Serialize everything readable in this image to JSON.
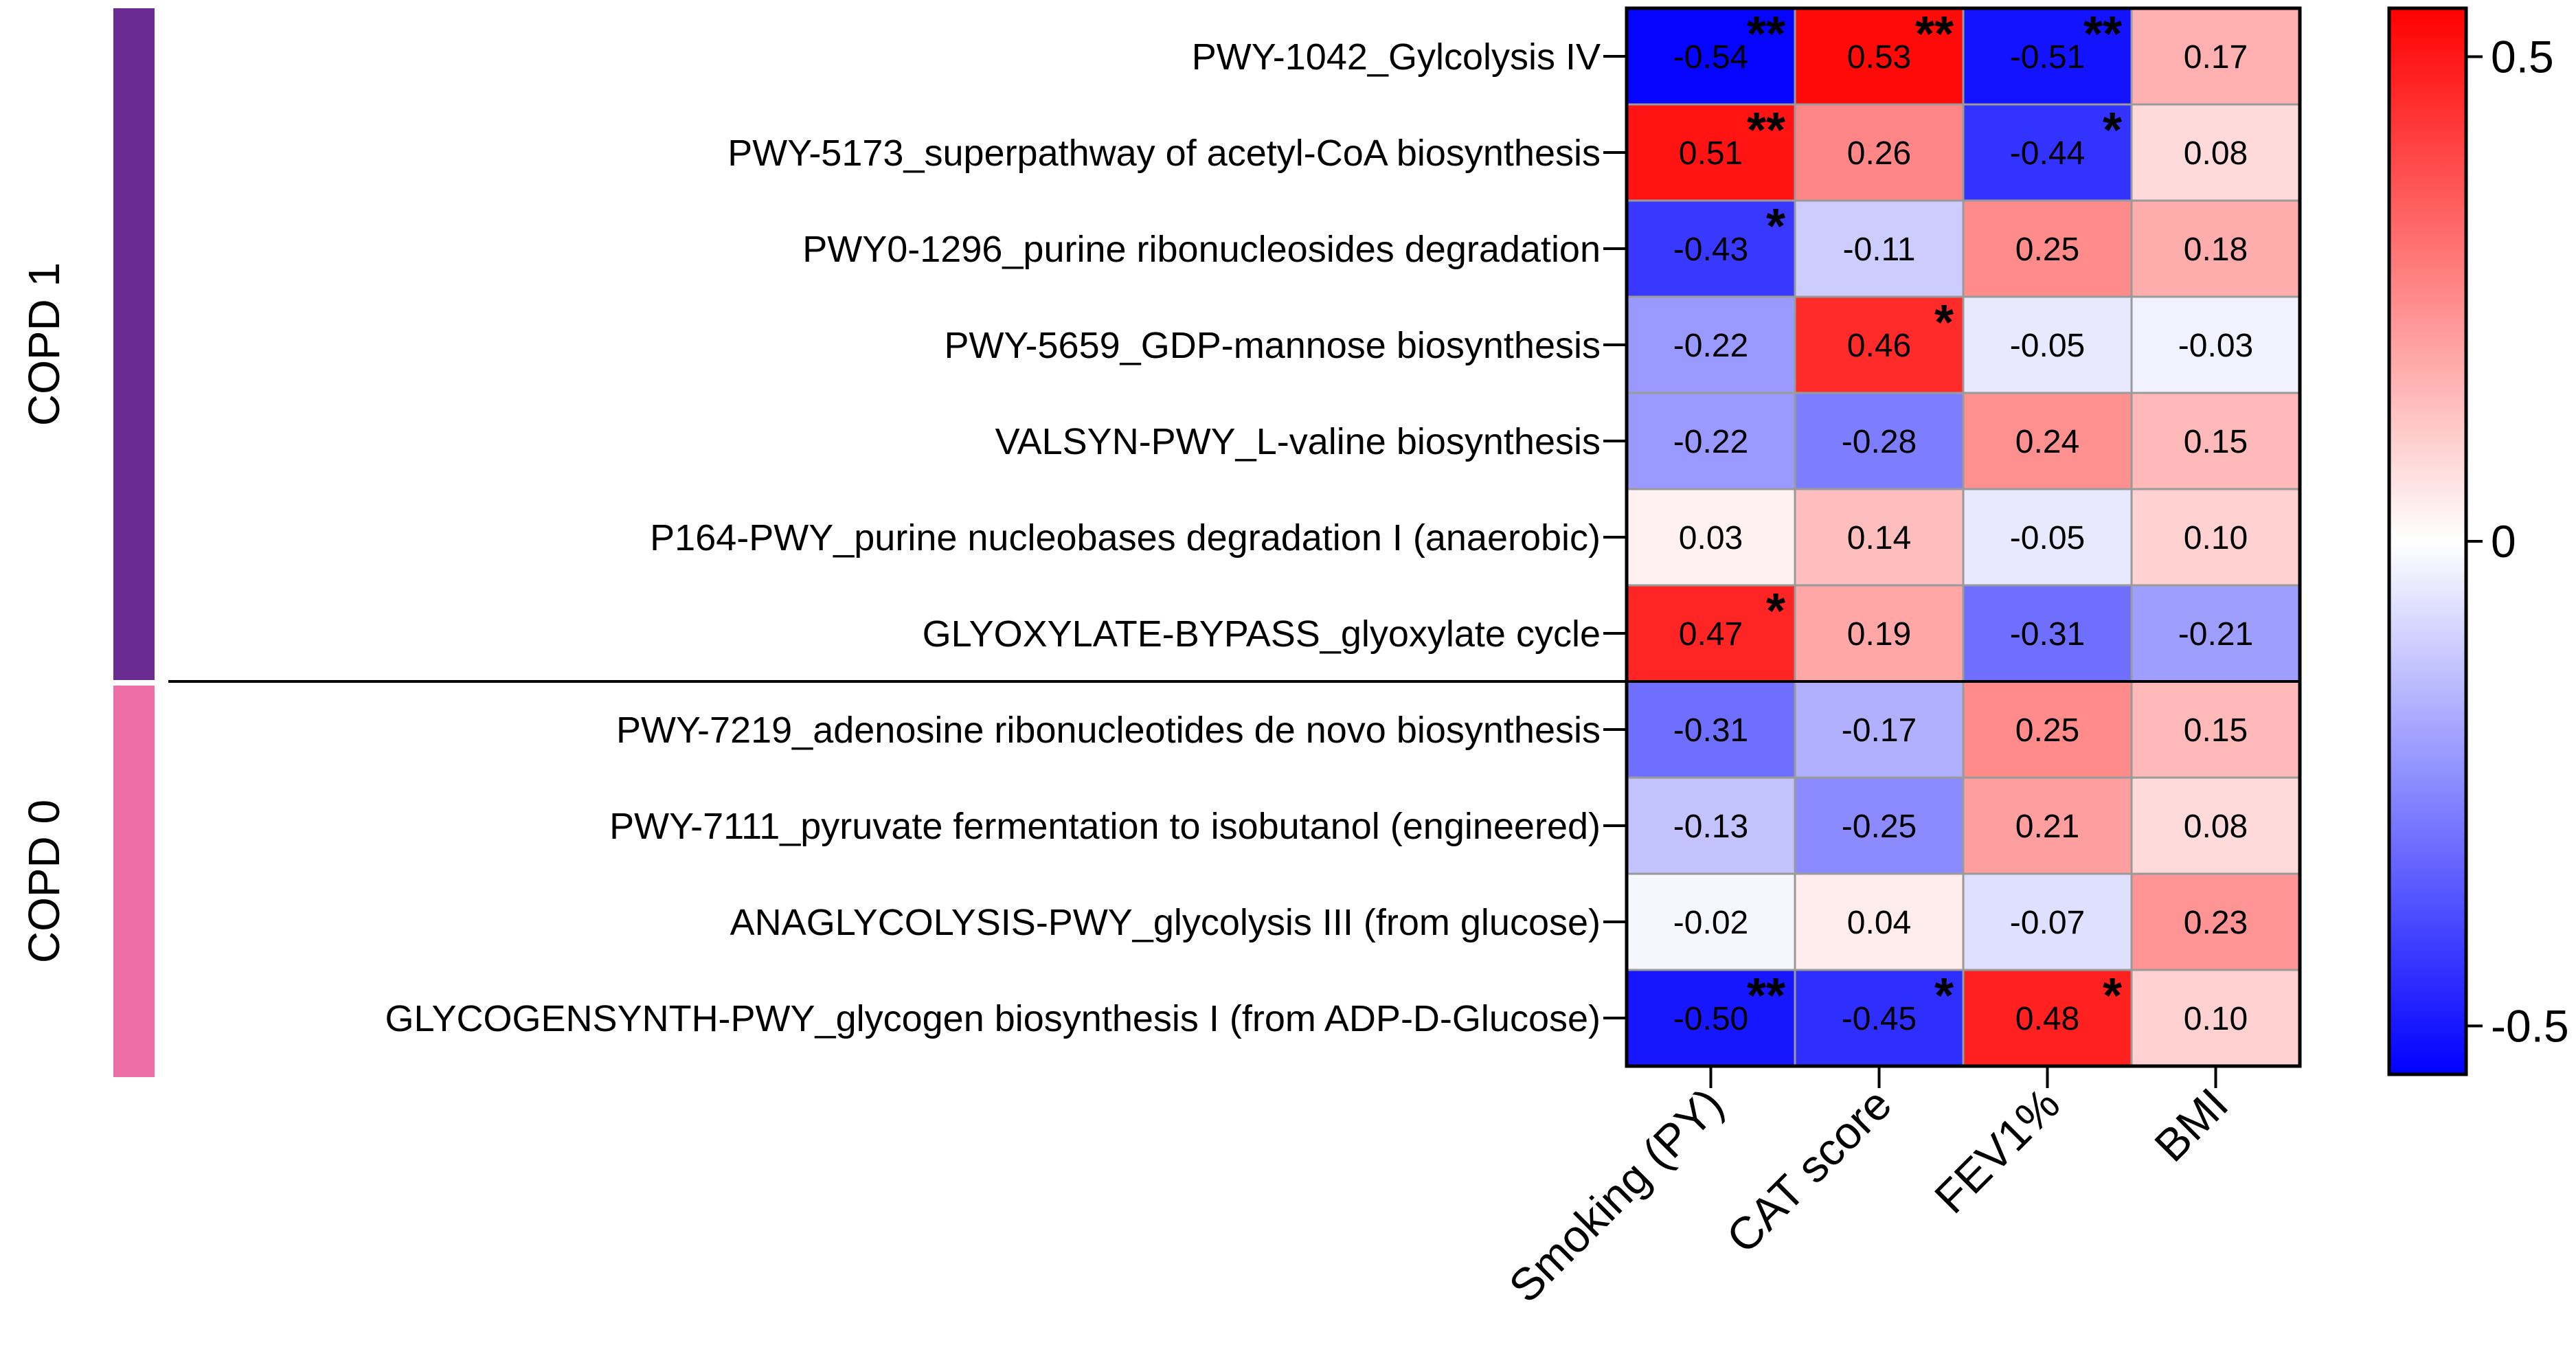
{
  "chart_data": {
    "type": "heatmap",
    "title": "",
    "columns": [
      "Smoking (PY)",
      "CAT score",
      "FEV1%",
      "BMI"
    ],
    "rows": [
      "PWY-1042_Gylcolysis IV",
      "PWY-5173_superpathway of acetyl-CoA biosynthesis",
      "PWY0-1296_purine ribonucleosides degradation",
      "PWY-5659_GDP-mannose biosynthesis",
      "VALSYN-PWY_L-valine biosynthesis",
      "P164-PWY_purine nucleobases degradation I (anaerobic)",
      "GLYOXYLATE-BYPASS_glyoxylate cycle",
      "PWY-7219_adenosine ribonucleotides de novo biosynthesis",
      "PWY-7111_pyruvate fermentation to isobutanol (engineered)",
      "ANAGLYCOLYSIS-PWY_glycolysis III (from glucose)",
      "GLYCOGENSYNTH-PWY_glycogen biosynthesis I (from ADP-D-Glucose)"
    ],
    "values": [
      [
        -0.54,
        0.53,
        -0.51,
        0.17
      ],
      [
        0.51,
        0.26,
        -0.44,
        0.08
      ],
      [
        -0.43,
        -0.11,
        0.25,
        0.18
      ],
      [
        -0.22,
        0.46,
        -0.05,
        -0.03
      ],
      [
        -0.22,
        -0.28,
        0.24,
        0.15
      ],
      [
        0.03,
        0.14,
        -0.05,
        0.1
      ],
      [
        0.47,
        0.19,
        -0.31,
        -0.21
      ],
      [
        -0.31,
        -0.17,
        0.25,
        0.15
      ],
      [
        -0.13,
        -0.25,
        0.21,
        0.08
      ],
      [
        -0.02,
        0.04,
        -0.07,
        0.23
      ],
      [
        -0.5,
        -0.45,
        0.48,
        0.1
      ]
    ],
    "value_labels": [
      [
        "-0.54",
        "0.53",
        "-0.51",
        "0.17"
      ],
      [
        "0.51",
        "0.26",
        "-0.44",
        "0.08"
      ],
      [
        "-0.43",
        "-0.11",
        "0.25",
        "0.18"
      ],
      [
        "-0.22",
        "0.46",
        "-0.05",
        "-0.03"
      ],
      [
        "-0.22",
        "-0.28",
        "0.24",
        "0.15"
      ],
      [
        "0.03",
        "0.14",
        "-0.05",
        "0.10"
      ],
      [
        "0.47",
        "0.19",
        "-0.31",
        "-0.21"
      ],
      [
        "-0.31",
        "-0.17",
        "0.25",
        "0.15"
      ],
      [
        "-0.13",
        "-0.25",
        "0.21",
        "0.08"
      ],
      [
        "-0.02",
        "0.04",
        "-0.07",
        "0.23"
      ],
      [
        "-0.50",
        "-0.45",
        "0.48",
        "0.10"
      ]
    ],
    "significance": [
      [
        "**",
        "**",
        "**",
        ""
      ],
      [
        "**",
        "",
        "*",
        ""
      ],
      [
        "*",
        "",
        "",
        ""
      ],
      [
        "",
        "*",
        "",
        ""
      ],
      [
        "",
        "",
        "",
        ""
      ],
      [
        "",
        "",
        "",
        ""
      ],
      [
        "*",
        "",
        "",
        ""
      ],
      [
        "",
        "",
        "",
        ""
      ],
      [
        "",
        "",
        "",
        ""
      ],
      [
        "",
        "",
        "",
        ""
      ],
      [
        "**",
        "*",
        "*",
        ""
      ]
    ],
    "groups": [
      {
        "label": "COPD 1",
        "row_count": 7,
        "color": "#6a2c91"
      },
      {
        "label": "COPD 0",
        "row_count": 4,
        "color": "#ee6fa8"
      }
    ],
    "color_scale": {
      "min": -0.55,
      "max": 0.55,
      "low_color": "#0000ff",
      "mid_color": "#ffffff",
      "high_color": "#ff0000"
    },
    "colorbar_ticks": [
      {
        "value": 0.5,
        "label": "0.5"
      },
      {
        "value": 0,
        "label": "0"
      },
      {
        "value": -0.5,
        "label": "-0.5"
      }
    ],
    "cell_border_color": "#9a9a9a"
  }
}
